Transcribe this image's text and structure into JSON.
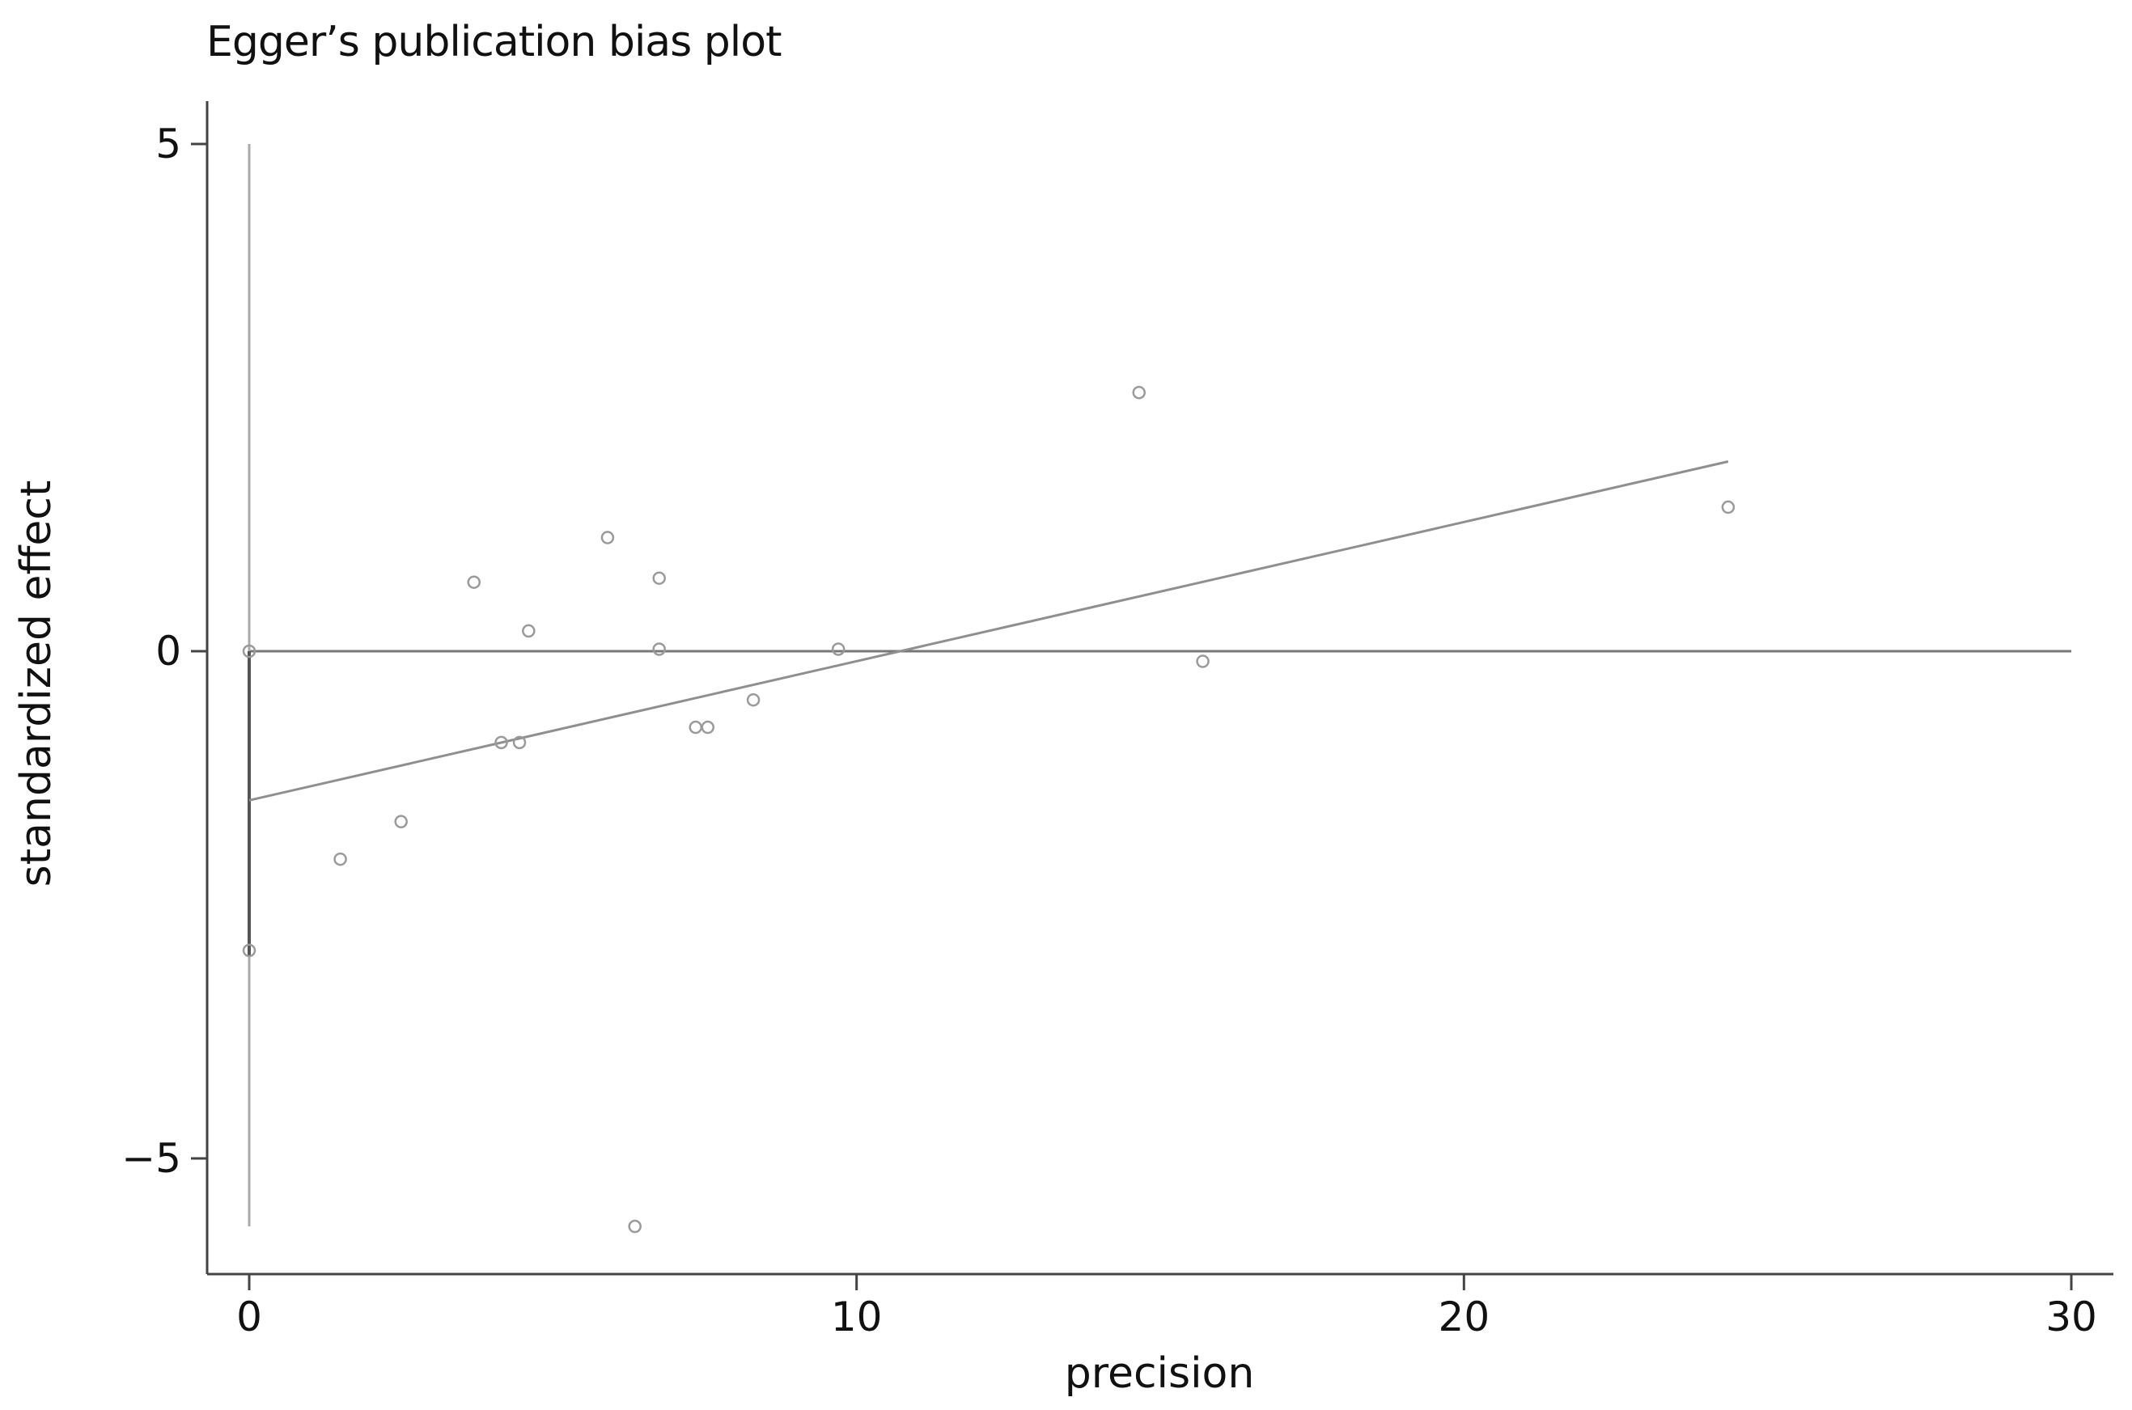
{
  "chart_data": {
    "type": "scatter",
    "title": "Egger’s publication bias plot",
    "xlabel": "precision",
    "ylabel": "standardized effect",
    "xlim": [
      0,
      30
    ],
    "ylim": [
      -6,
      5
    ],
    "x_ticks": [
      0,
      10,
      20,
      30
    ],
    "x_tick_labels": [
      "0",
      "10",
      "20",
      "30"
    ],
    "y_ticks": [
      5,
      0,
      -5
    ],
    "y_tick_labels": [
      "5",
      "0",
      "−5"
    ],
    "grid": false,
    "legend": "none",
    "points": [
      {
        "x": 0.0,
        "y": 0.0
      },
      {
        "x": 0.0,
        "y": -2.95
      },
      {
        "x": 1.5,
        "y": -2.05
      },
      {
        "x": 2.5,
        "y": -1.68
      },
      {
        "x": 3.7,
        "y": 0.68
      },
      {
        "x": 4.15,
        "y": -0.9
      },
      {
        "x": 4.45,
        "y": -0.9
      },
      {
        "x": 4.6,
        "y": 0.2
      },
      {
        "x": 5.9,
        "y": 1.12
      },
      {
        "x": 6.35,
        "y": -5.67
      },
      {
        "x": 6.75,
        "y": 0.72
      },
      {
        "x": 6.75,
        "y": 0.02
      },
      {
        "x": 7.35,
        "y": -0.75
      },
      {
        "x": 7.55,
        "y": -0.75
      },
      {
        "x": 8.3,
        "y": -0.48
      },
      {
        "x": 9.7,
        "y": 0.02
      },
      {
        "x": 14.65,
        "y": 2.55
      },
      {
        "x": 15.7,
        "y": -0.1
      },
      {
        "x": 24.35,
        "y": 1.42
      }
    ],
    "fit_line": {
      "x": [
        0,
        24.35
      ],
      "y": [
        -1.47,
        1.87
      ]
    },
    "reference_line_y": 0,
    "intercept_ci": [
      -5.67,
      5.0
    ],
    "colors": {
      "points": "#9a9a9a",
      "fit_line": "#8f8f8f",
      "axes": "#444444",
      "zero_line": "#777777",
      "ci_line": "#aaaaaa",
      "ci_line_dark": "#555555"
    }
  }
}
